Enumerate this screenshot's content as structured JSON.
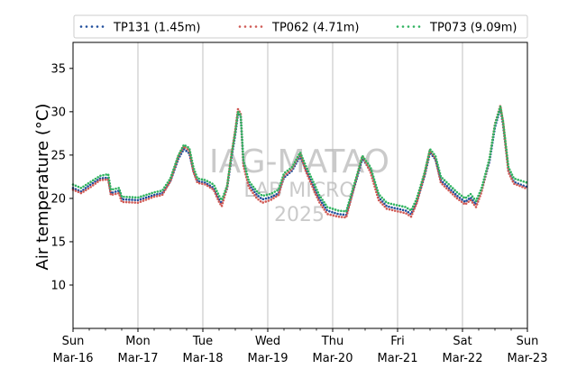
{
  "chart_data": {
    "type": "line",
    "style": "dotted",
    "ylabel": "Air temperature (°C)",
    "ylim": [
      5,
      38
    ],
    "yticks": [
      10,
      15,
      20,
      25,
      30,
      35
    ],
    "xlim": [
      "2025-03-16",
      "2025-03-23"
    ],
    "xtick_labels": [
      {
        "day": "Sun",
        "date": "Mar-16"
      },
      {
        "day": "Mon",
        "date": "Mar-17"
      },
      {
        "day": "Tue",
        "date": "Mar-18"
      },
      {
        "day": "Wed",
        "date": "Mar-19"
      },
      {
        "day": "Thu",
        "date": "Mar-20"
      },
      {
        "day": "Fri",
        "date": "Mar-21"
      },
      {
        "day": "Sat",
        "date": "Mar-22"
      },
      {
        "day": "Sun",
        "date": "Mar-23"
      }
    ],
    "grid": "vertical-major",
    "legend_position": "top",
    "watermark": [
      "IAG-MATAO",
      "LAB MICRO",
      "2025"
    ],
    "series": [
      {
        "name": "TP131 (1.45m)",
        "color": "#1f4e9c",
        "points": [
          [
            "2025-03-16 00:00",
            21.2
          ],
          [
            "2025-03-16 03:00",
            20.8
          ],
          [
            "2025-03-16 06:00",
            21.5
          ],
          [
            "2025-03-16 10:00",
            22.3
          ],
          [
            "2025-03-16 13:00",
            22.4
          ],
          [
            "2025-03-16 14:00",
            20.6
          ],
          [
            "2025-03-16 17:00",
            20.9
          ],
          [
            "2025-03-16 18:00",
            19.9
          ],
          [
            "2025-03-17 00:00",
            19.8
          ],
          [
            "2025-03-17 06:00",
            20.4
          ],
          [
            "2025-03-17 09:00",
            20.6
          ],
          [
            "2025-03-17 12:00",
            22.0
          ],
          [
            "2025-03-17 15:00",
            24.6
          ],
          [
            "2025-03-17 17:00",
            25.7
          ],
          [
            "2025-03-17 19:00",
            25.2
          ],
          [
            "2025-03-17 20:30",
            23.2
          ],
          [
            "2025-03-17 22:00",
            22.0
          ],
          [
            "2025-03-18 01:00",
            21.8
          ],
          [
            "2025-03-18 04:00",
            21.2
          ],
          [
            "2025-03-18 06:00",
            19.9
          ],
          [
            "2025-03-18 07:00",
            19.4
          ],
          [
            "2025-03-18 09:00",
            21.2
          ],
          [
            "2025-03-18 10:30",
            24.5
          ],
          [
            "2025-03-18 12:00",
            27.4
          ],
          [
            "2025-03-18 13:00",
            29.8
          ],
          [
            "2025-03-18 14:00",
            29.5
          ],
          [
            "2025-03-18 15:00",
            24.0
          ],
          [
            "2025-03-18 17:00",
            21.6
          ],
          [
            "2025-03-18 20:00",
            20.4
          ],
          [
            "2025-03-18 22:00",
            19.9
          ],
          [
            "2025-03-19 01:00",
            20.1
          ],
          [
            "2025-03-19 04:00",
            20.6
          ],
          [
            "2025-03-19 06:00",
            22.4
          ],
          [
            "2025-03-19 09:00",
            23.2
          ],
          [
            "2025-03-19 12:00",
            24.9
          ],
          [
            "2025-03-19 14:00",
            23.4
          ],
          [
            "2025-03-19 17:00",
            21.4
          ],
          [
            "2025-03-19 19:00",
            20.0
          ],
          [
            "2025-03-19 22:00",
            18.6
          ],
          [
            "2025-03-20 02:00",
            18.2
          ],
          [
            "2025-03-20 05:00",
            18.1
          ],
          [
            "2025-03-20 09:00",
            22.4
          ],
          [
            "2025-03-20 11:00",
            24.6
          ],
          [
            "2025-03-20 14:00",
            23.2
          ],
          [
            "2025-03-20 17:00",
            20.1
          ],
          [
            "2025-03-20 20:00",
            19.1
          ],
          [
            "2025-03-21 00:00",
            18.8
          ],
          [
            "2025-03-21 03:00",
            18.6
          ],
          [
            "2025-03-21 05:00",
            18.2
          ],
          [
            "2025-03-21 07:00",
            19.5
          ],
          [
            "2025-03-21 10:00",
            22.6
          ],
          [
            "2025-03-21 12:00",
            25.3
          ],
          [
            "2025-03-21 14:00",
            24.5
          ],
          [
            "2025-03-21 16:00",
            22.1
          ],
          [
            "2025-03-21 19:00",
            21.2
          ],
          [
            "2025-03-21 22:00",
            20.3
          ],
          [
            "2025-03-22 01:00",
            19.6
          ],
          [
            "2025-03-22 03:00",
            20.1
          ],
          [
            "2025-03-22 05:00",
            19.3
          ],
          [
            "2025-03-22 07:00",
            20.8
          ],
          [
            "2025-03-22 10:00",
            24.3
          ],
          [
            "2025-03-22 12:00",
            28.2
          ],
          [
            "2025-03-22 14:00",
            30.4
          ],
          [
            "2025-03-22 15:00",
            28.5
          ],
          [
            "2025-03-22 17:00",
            23.2
          ],
          [
            "2025-03-22 19:00",
            21.9
          ],
          [
            "2025-03-23 00:00",
            21.3
          ]
        ]
      },
      {
        "name": "TP062 (4.71m)",
        "color": "#d05a55",
        "points": [
          [
            "2025-03-16 00:00",
            21.0
          ],
          [
            "2025-03-16 03:00",
            20.6
          ],
          [
            "2025-03-16 06:00",
            21.2
          ],
          [
            "2025-03-16 10:00",
            22.1
          ],
          [
            "2025-03-16 13:00",
            22.2
          ],
          [
            "2025-03-16 14:00",
            20.4
          ],
          [
            "2025-03-16 17:00",
            20.6
          ],
          [
            "2025-03-16 18:00",
            19.6
          ],
          [
            "2025-03-17 00:00",
            19.5
          ],
          [
            "2025-03-17 06:00",
            20.2
          ],
          [
            "2025-03-17 09:00",
            20.4
          ],
          [
            "2025-03-17 12:00",
            22.0
          ],
          [
            "2025-03-17 15:00",
            24.9
          ],
          [
            "2025-03-17 17:00",
            26.0
          ],
          [
            "2025-03-17 19:00",
            25.5
          ],
          [
            "2025-03-17 20:30",
            23.1
          ],
          [
            "2025-03-17 22:00",
            21.8
          ],
          [
            "2025-03-18 01:00",
            21.6
          ],
          [
            "2025-03-18 04:00",
            21.0
          ],
          [
            "2025-03-18 06:00",
            19.6
          ],
          [
            "2025-03-18 07:00",
            19.1
          ],
          [
            "2025-03-18 09:00",
            21.4
          ],
          [
            "2025-03-18 10:30",
            24.9
          ],
          [
            "2025-03-18 12:00",
            27.9
          ],
          [
            "2025-03-18 13:00",
            30.3
          ],
          [
            "2025-03-18 14:00",
            29.8
          ],
          [
            "2025-03-18 15:00",
            23.8
          ],
          [
            "2025-03-18 17:00",
            21.3
          ],
          [
            "2025-03-18 20:00",
            20.0
          ],
          [
            "2025-03-18 22:00",
            19.5
          ],
          [
            "2025-03-19 01:00",
            19.8
          ],
          [
            "2025-03-19 04:00",
            20.4
          ],
          [
            "2025-03-19 06:00",
            22.6
          ],
          [
            "2025-03-19 09:00",
            23.4
          ],
          [
            "2025-03-19 12:00",
            25.2
          ],
          [
            "2025-03-19 14:00",
            23.2
          ],
          [
            "2025-03-19 17:00",
            21.0
          ],
          [
            "2025-03-19 19:00",
            19.6
          ],
          [
            "2025-03-19 22:00",
            18.2
          ],
          [
            "2025-03-20 02:00",
            17.9
          ],
          [
            "2025-03-20 05:00",
            17.8
          ],
          [
            "2025-03-20 09:00",
            22.6
          ],
          [
            "2025-03-20 11:00",
            24.9
          ],
          [
            "2025-03-20 14:00",
            23.0
          ],
          [
            "2025-03-20 17:00",
            19.8
          ],
          [
            "2025-03-20 20:00",
            18.8
          ],
          [
            "2025-03-21 00:00",
            18.5
          ],
          [
            "2025-03-21 03:00",
            18.3
          ],
          [
            "2025-03-21 05:00",
            17.9
          ],
          [
            "2025-03-21 07:00",
            19.4
          ],
          [
            "2025-03-21 10:00",
            22.8
          ],
          [
            "2025-03-21 12:00",
            25.6
          ],
          [
            "2025-03-21 14:00",
            24.6
          ],
          [
            "2025-03-21 16:00",
            21.8
          ],
          [
            "2025-03-21 19:00",
            20.9
          ],
          [
            "2025-03-21 22:00",
            20.0
          ],
          [
            "2025-03-22 01:00",
            19.3
          ],
          [
            "2025-03-22 03:00",
            19.8
          ],
          [
            "2025-03-22 05:00",
            19.0
          ],
          [
            "2025-03-22 07:00",
            20.7
          ],
          [
            "2025-03-22 10:00",
            24.6
          ],
          [
            "2025-03-22 12:00",
            28.6
          ],
          [
            "2025-03-22 14:00",
            30.7
          ],
          [
            "2025-03-22 15:00",
            28.8
          ],
          [
            "2025-03-22 17:00",
            23.0
          ],
          [
            "2025-03-22 19:00",
            21.7
          ],
          [
            "2025-03-23 00:00",
            21.1
          ]
        ]
      },
      {
        "name": "TP073 (9.09m)",
        "color": "#2fb35f",
        "points": [
          [
            "2025-03-16 00:00",
            21.6
          ],
          [
            "2025-03-16 03:00",
            21.2
          ],
          [
            "2025-03-16 06:00",
            21.8
          ],
          [
            "2025-03-16 10:00",
            22.6
          ],
          [
            "2025-03-16 13:00",
            22.8
          ],
          [
            "2025-03-16 14:00",
            21.0
          ],
          [
            "2025-03-16 17:00",
            21.2
          ],
          [
            "2025-03-16 18:00",
            20.2
          ],
          [
            "2025-03-17 00:00",
            20.1
          ],
          [
            "2025-03-17 06:00",
            20.7
          ],
          [
            "2025-03-17 09:00",
            20.9
          ],
          [
            "2025-03-17 12:00",
            22.3
          ],
          [
            "2025-03-17 15:00",
            25.0
          ],
          [
            "2025-03-17 17:00",
            26.2
          ],
          [
            "2025-03-17 19:00",
            25.8
          ],
          [
            "2025-03-17 20:30",
            23.6
          ],
          [
            "2025-03-17 22:00",
            22.3
          ],
          [
            "2025-03-18 01:00",
            22.1
          ],
          [
            "2025-03-18 04:00",
            21.6
          ],
          [
            "2025-03-18 06:00",
            20.3
          ],
          [
            "2025-03-18 07:00",
            19.8
          ],
          [
            "2025-03-18 09:00",
            21.5
          ],
          [
            "2025-03-18 10:30",
            24.8
          ],
          [
            "2025-03-18 12:00",
            27.7
          ],
          [
            "2025-03-18 13:00",
            30.0
          ],
          [
            "2025-03-18 14:00",
            29.6
          ],
          [
            "2025-03-18 15:00",
            24.4
          ],
          [
            "2025-03-18 17:00",
            22.0
          ],
          [
            "2025-03-18 20:00",
            20.8
          ],
          [
            "2025-03-18 22:00",
            20.3
          ],
          [
            "2025-03-19 01:00",
            20.5
          ],
          [
            "2025-03-19 04:00",
            21.0
          ],
          [
            "2025-03-19 06:00",
            22.9
          ],
          [
            "2025-03-19 09:00",
            23.6
          ],
          [
            "2025-03-19 12:00",
            25.3
          ],
          [
            "2025-03-19 14:00",
            23.8
          ],
          [
            "2025-03-19 17:00",
            21.8
          ],
          [
            "2025-03-19 19:00",
            20.4
          ],
          [
            "2025-03-19 22:00",
            19.0
          ],
          [
            "2025-03-20 02:00",
            18.6
          ],
          [
            "2025-03-20 05:00",
            18.5
          ],
          [
            "2025-03-20 09:00",
            22.7
          ],
          [
            "2025-03-20 11:00",
            24.9
          ],
          [
            "2025-03-20 14:00",
            23.6
          ],
          [
            "2025-03-20 17:00",
            20.5
          ],
          [
            "2025-03-20 20:00",
            19.5
          ],
          [
            "2025-03-21 00:00",
            19.2
          ],
          [
            "2025-03-21 03:00",
            19.0
          ],
          [
            "2025-03-21 05:00",
            18.6
          ],
          [
            "2025-03-21 07:00",
            19.9
          ],
          [
            "2025-03-21 10:00",
            23.0
          ],
          [
            "2025-03-21 12:00",
            25.7
          ],
          [
            "2025-03-21 14:00",
            24.9
          ],
          [
            "2025-03-21 16:00",
            22.5
          ],
          [
            "2025-03-21 19:00",
            21.6
          ],
          [
            "2025-03-21 22:00",
            20.7
          ],
          [
            "2025-03-22 01:00",
            20.0
          ],
          [
            "2025-03-22 03:00",
            20.5
          ],
          [
            "2025-03-22 05:00",
            19.7
          ],
          [
            "2025-03-22 07:00",
            21.1
          ],
          [
            "2025-03-22 10:00",
            24.6
          ],
          [
            "2025-03-22 12:00",
            28.5
          ],
          [
            "2025-03-22 14:00",
            30.6
          ],
          [
            "2025-03-22 15:00",
            28.9
          ],
          [
            "2025-03-22 17:00",
            23.6
          ],
          [
            "2025-03-22 19:00",
            22.3
          ],
          [
            "2025-03-23 00:00",
            21.8
          ]
        ]
      }
    ]
  }
}
